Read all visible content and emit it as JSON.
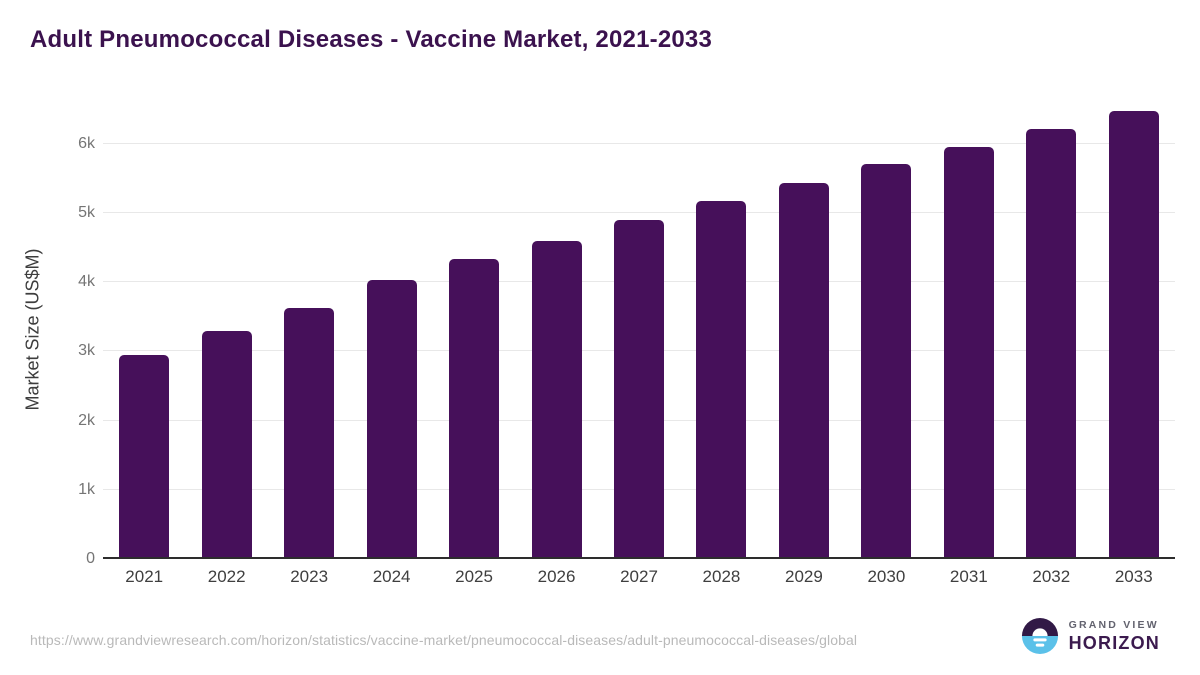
{
  "title": "Adult Pneumococcal Diseases - Vaccine Market, 2021-2033",
  "colors": {
    "bar": "#46105A",
    "title_text": "#3b124e",
    "gridline": "#e8e8e8",
    "axis_line": "#2d2d2d",
    "y_tick_text": "#757575",
    "x_label_text": "#3f3f3f",
    "url_text": "#b9b9b9",
    "logo_purple": "#311946",
    "logo_blue": "#5bc1e9"
  },
  "chart_data": {
    "type": "bar",
    "title": "Adult Pneumococcal Diseases - Vaccine Market, 2021-2033",
    "categories": [
      "2021",
      "2022",
      "2023",
      "2024",
      "2025",
      "2026",
      "2027",
      "2028",
      "2029",
      "2030",
      "2031",
      "2032",
      "2033"
    ],
    "values": [
      2950,
      3300,
      3630,
      4040,
      4340,
      4600,
      4900,
      5170,
      5430,
      5710,
      5960,
      6220,
      6480
    ],
    "xlabel": "",
    "ylabel": "Market Size (US$M)",
    "ylim": [
      0,
      6650
    ],
    "ytick_values": [
      0,
      1000,
      2000,
      3000,
      4000,
      5000,
      6000
    ],
    "ytick_labels": [
      "0",
      "1k",
      "2k",
      "3k",
      "4k",
      "5k",
      "6k"
    ],
    "grid": "horizontal-only",
    "legend": "none"
  },
  "footer": {
    "source_url": "https://www.grandviewresearch.com/horizon/statistics/vaccine-market/pneumococcal-diseases/adult-pneumococcal-diseases/global",
    "logo": {
      "line1": "GRAND VIEW",
      "line2": "HORIZON"
    }
  }
}
